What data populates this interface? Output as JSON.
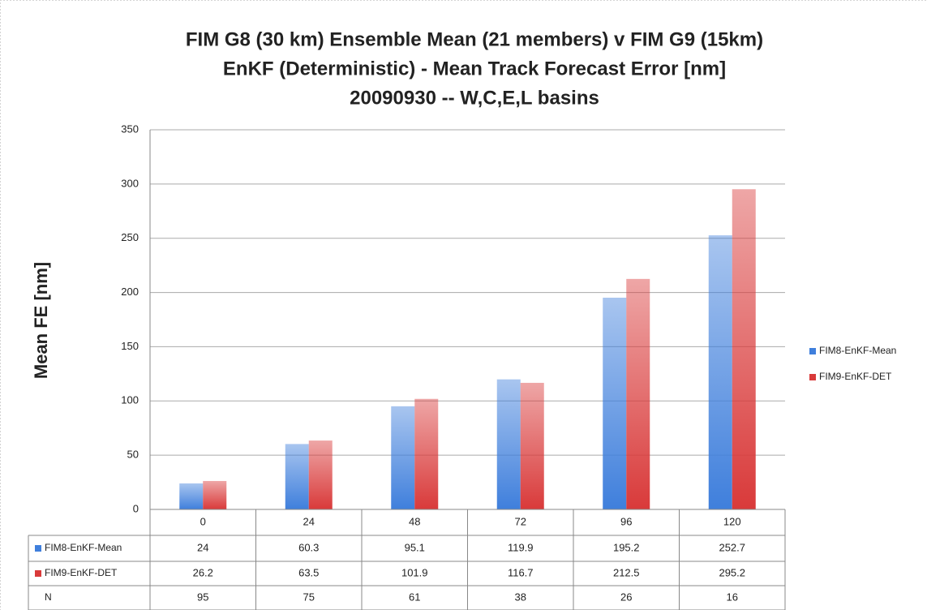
{
  "chart_data": {
    "type": "bar",
    "title": [
      "FIM G8 (30 km) Ensemble Mean (21 members) v FIM G9 (15km)",
      "EnKF (Deterministic) - Mean Track Forecast Error [nm]",
      "20090930 -- W,C,E,L basins"
    ],
    "y_label": "Mean FE [nm]",
    "categories": [
      "0",
      "24",
      "48",
      "72",
      "96",
      "120"
    ],
    "series": [
      {
        "name": "FIM8-EnKF-Mean",
        "color": "#3f7fdc",
        "values": [
          24,
          60.3,
          95.1,
          119.9,
          195.2,
          252.7
        ]
      },
      {
        "name": "FIM9-EnKF-DET",
        "color": "#d93a3a",
        "values": [
          26.2,
          63.5,
          101.9,
          116.7,
          212.5,
          295.2
        ]
      }
    ],
    "n_row": {
      "label": "N",
      "values": [
        95,
        75,
        61,
        38,
        26,
        16
      ]
    },
    "ylim": [
      0,
      350
    ],
    "yticks": [
      0,
      50,
      100,
      150,
      200,
      250,
      300,
      350
    ],
    "grid": true,
    "legend": "right"
  }
}
